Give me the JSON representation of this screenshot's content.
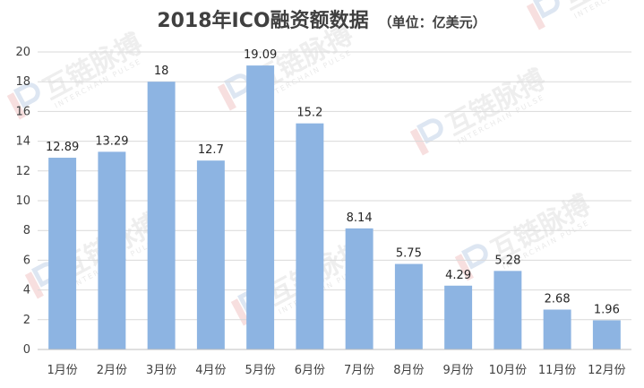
{
  "chart_data": {
    "type": "bar",
    "title": "2018年ICO融资额数据",
    "subtitle": "（单位：亿美元）",
    "categories": [
      "1月份",
      "2月份",
      "3月份",
      "4月份",
      "5月份",
      "6月份",
      "7月份",
      "8月份",
      "9月份",
      "10月份",
      "11月份",
      "12月份"
    ],
    "values": [
      12.89,
      13.29,
      18,
      12.7,
      19.09,
      15.2,
      8.14,
      5.75,
      4.29,
      5.28,
      2.68,
      1.96
    ],
    "value_labels": [
      "12.89",
      "13.29",
      "18",
      "12.7",
      "19.09",
      "15.2",
      "8.14",
      "5.75",
      "4.29",
      "5.28",
      "2.68",
      "1.96"
    ],
    "xlabel": "",
    "ylabel": "",
    "ylim": [
      0,
      20
    ],
    "yticks": [
      "0",
      "2",
      "4",
      "6",
      "8",
      "10",
      "12",
      "14",
      "16",
      "18",
      "20"
    ],
    "grid": true,
    "legend": "none",
    "bar_color": "#8db4e2"
  },
  "watermark": {
    "text": "互链脉搏",
    "subtext": "INTERCHAIN PULSE",
    "logo_icon": "ip-logo-icon"
  }
}
